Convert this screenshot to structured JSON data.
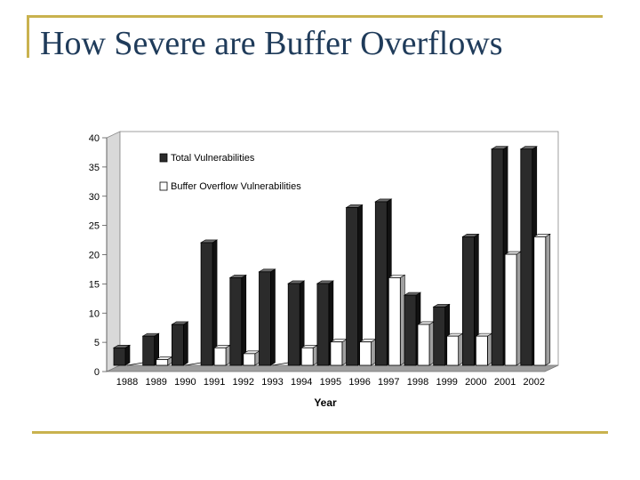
{
  "slide": {
    "title": "How Severe are Buffer Overflows"
  },
  "chart_data": {
    "type": "bar",
    "title": "",
    "xlabel": "Year",
    "ylabel": "",
    "ylim": [
      0,
      40
    ],
    "yticks": [
      "0",
      "5",
      "10",
      "15",
      "20",
      "25",
      "30",
      "35",
      "40"
    ],
    "categories": [
      "1988",
      "1989",
      "1990",
      "1991",
      "1992",
      "1993",
      "1994",
      "1995",
      "1996",
      "1997",
      "1998",
      "1999",
      "2000",
      "2001",
      "2002"
    ],
    "series": [
      {
        "name": "Total Vulnerabilities",
        "color": "#2b2b2b",
        "values": [
          3,
          5,
          7,
          21,
          15,
          16,
          14,
          14,
          27,
          28,
          12,
          10,
          22,
          37,
          37
        ]
      },
      {
        "name": "Buffer Overflow  Vulnerabilities",
        "color": "#ffffff",
        "values": [
          0,
          1,
          0,
          3,
          2,
          0,
          3,
          4,
          4,
          15,
          7,
          5,
          5,
          19,
          22
        ]
      }
    ],
    "legend": "top-left"
  }
}
